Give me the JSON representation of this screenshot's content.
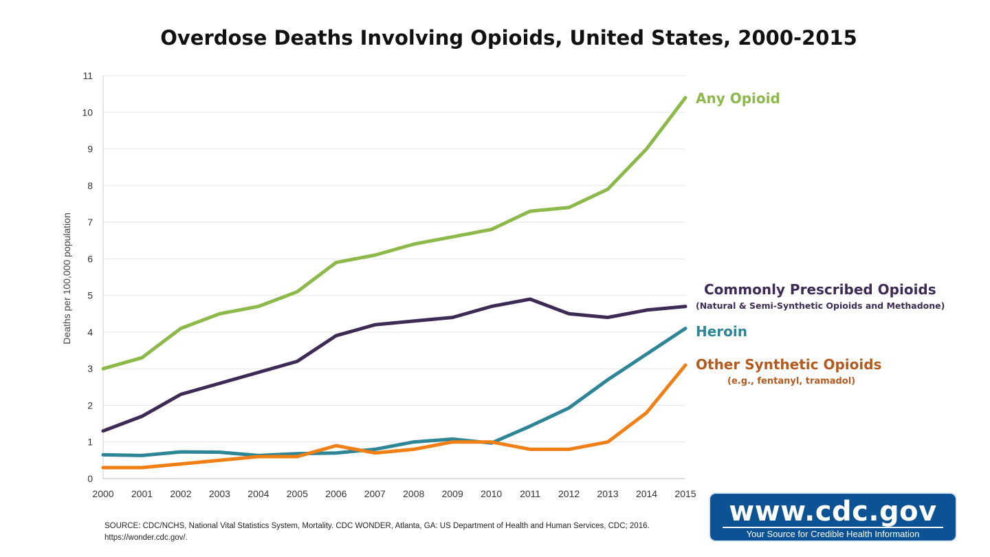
{
  "chart_data": {
    "type": "line",
    "title": "Overdose Deaths Involving Opioids, United States, 2000-2015",
    "xlabel": "",
    "ylabel": "Deaths per 100,000 population",
    "ylim": [
      0,
      11
    ],
    "yticks": [
      "0",
      "1",
      "2",
      "3",
      "4",
      "5",
      "6",
      "7",
      "8",
      "9",
      "10",
      "11"
    ],
    "x": [
      "2000",
      "2001",
      "2002",
      "2003",
      "2004",
      "2005",
      "2006",
      "2007",
      "2008",
      "2009",
      "2010",
      "2011",
      "2012",
      "2013",
      "2014",
      "2015"
    ],
    "grid": true,
    "legend": "inline labels at right end of lines",
    "series": [
      {
        "name": "Any Opioid",
        "color": "#8DB84A",
        "values": [
          3.0,
          3.3,
          4.1,
          4.5,
          4.7,
          5.1,
          5.9,
          6.1,
          6.4,
          6.6,
          6.8,
          7.3,
          7.4,
          7.9,
          9.0,
          10.4
        ]
      },
      {
        "name": "Commonly Prescribed Opioids",
        "subtitle": "(Natural & Semi-Synthetic Opioids and Methadone)",
        "color": "#3D2B56",
        "values": [
          1.3,
          1.7,
          2.3,
          2.6,
          2.9,
          3.2,
          3.9,
          4.2,
          4.3,
          4.4,
          4.7,
          4.9,
          4.5,
          4.4,
          4.6,
          4.7
        ]
      },
      {
        "name": "Heroin",
        "color": "#2D8596",
        "values": [
          0.65,
          0.63,
          0.73,
          0.72,
          0.63,
          0.68,
          0.7,
          0.8,
          1.0,
          1.08,
          0.97,
          1.43,
          1.93,
          2.7,
          3.4,
          4.1
        ]
      },
      {
        "name": "Other Synthetic Opioids",
        "subtitle": "(e.g., fentanyl, tramadol)",
        "color": "#F07F16",
        "label_color": "#B35A1F",
        "values": [
          0.3,
          0.3,
          0.4,
          0.5,
          0.6,
          0.6,
          0.9,
          0.7,
          0.8,
          1.0,
          1.0,
          0.8,
          0.8,
          1.0,
          1.8,
          3.1
        ]
      }
    ]
  },
  "source_note": "SOURCE: CDC/NCHS, National Vital Statistics System, Mortality. CDC WONDER, Atlanta, GA: US Department of Health and Human Services, CDC; 2016. https://wonder.cdc.gov/.",
  "logo": {
    "main": "www.cdc.gov",
    "tagline": "Your Source for Credible Health Information"
  }
}
